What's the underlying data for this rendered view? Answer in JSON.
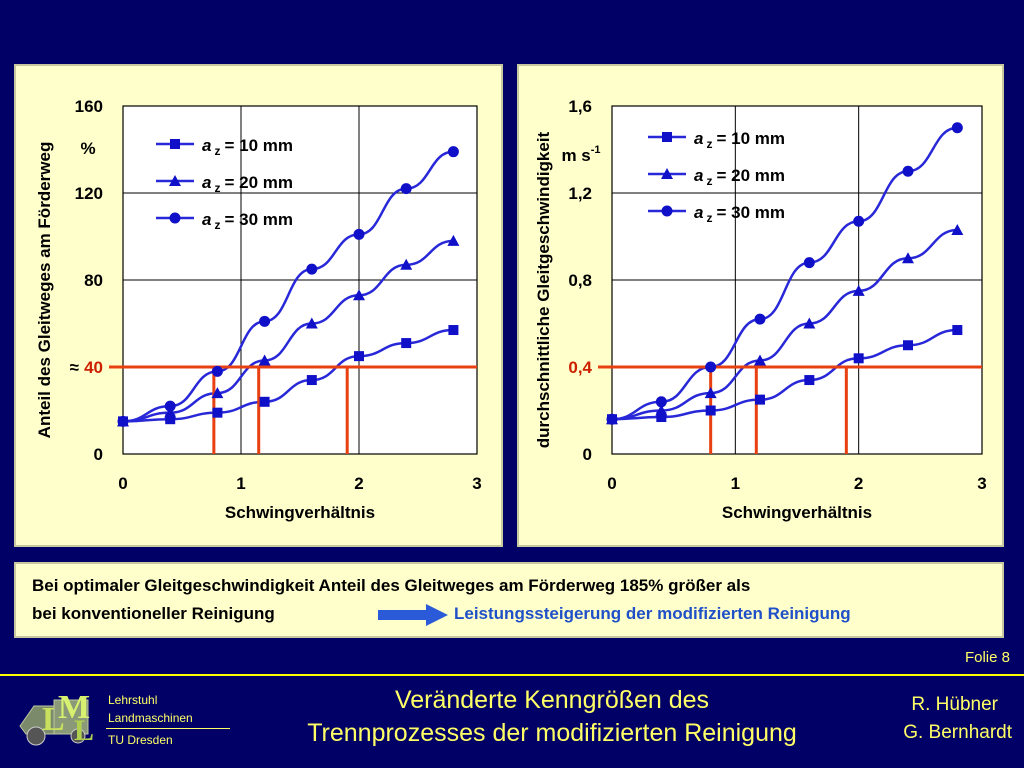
{
  "chart_data": [
    {
      "type": "line",
      "ylabel": "Anteil des Gleitweges am Förderweg",
      "xlabel": "Schwingverhältnis",
      "unit": "%",
      "xlim": [
        0,
        3
      ],
      "ylim": [
        0,
        160
      ],
      "x_ticks": [
        "0",
        "1",
        "2",
        "3"
      ],
      "y_ticks": [
        {
          "v": 0,
          "label": "0"
        },
        {
          "v": 80,
          "label": "80"
        },
        {
          "v": 120,
          "label": "120"
        },
        {
          "v": 160,
          "label": "160"
        }
      ],
      "marked_tick": {
        "v": 40,
        "label": "40",
        "prefix": "≈"
      },
      "series": [
        {
          "name": "a z = 10 mm",
          "marker": "square",
          "x": [
            0,
            0.4,
            0.8,
            1.2,
            1.6,
            2.0,
            2.4,
            2.8
          ],
          "y": [
            15,
            16,
            19,
            24,
            34,
            45,
            51,
            57
          ]
        },
        {
          "name": "a z = 20 mm",
          "marker": "triangle",
          "x": [
            0,
            0.4,
            0.8,
            1.2,
            1.6,
            2.0,
            2.4,
            2.8
          ],
          "y": [
            15,
            19,
            28,
            43,
            60,
            73,
            87,
            98
          ]
        },
        {
          "name": "a z = 30 mm",
          "marker": "circle",
          "x": [
            0,
            0.4,
            0.8,
            1.2,
            1.6,
            2.0,
            2.4,
            2.8
          ],
          "y": [
            15,
            22,
            38,
            61,
            85,
            101,
            122,
            139
          ]
        }
      ],
      "ref_y": 40,
      "ref_x": [
        0.77,
        1.15,
        1.9
      ]
    },
    {
      "type": "line",
      "ylabel": "durchschnittliche Gleitgeschwindigkeit",
      "xlabel": "Schwingverhältnis",
      "unit": "m s",
      "unit_sup": "-1",
      "xlim": [
        0,
        3
      ],
      "ylim": [
        0,
        1.6
      ],
      "x_ticks": [
        "0",
        "1",
        "2",
        "3"
      ],
      "y_ticks": [
        {
          "v": 0,
          "label": "0"
        },
        {
          "v": 0.8,
          "label": "0,8"
        },
        {
          "v": 1.2,
          "label": "1,2"
        },
        {
          "v": 1.6,
          "label": "1,6"
        }
      ],
      "marked_tick": {
        "v": 0.4,
        "label": "0,4",
        "prefix": ""
      },
      "series": [
        {
          "name": "a z = 10 mm",
          "marker": "square",
          "x": [
            0,
            0.4,
            0.8,
            1.2,
            1.6,
            2.0,
            2.4,
            2.8
          ],
          "y": [
            0.16,
            0.17,
            0.2,
            0.25,
            0.34,
            0.44,
            0.5,
            0.57
          ]
        },
        {
          "name": "a z = 20 mm",
          "marker": "triangle",
          "x": [
            0,
            0.4,
            0.8,
            1.2,
            1.6,
            2.0,
            2.4,
            2.8
          ],
          "y": [
            0.16,
            0.2,
            0.28,
            0.43,
            0.6,
            0.75,
            0.9,
            1.03
          ]
        },
        {
          "name": "a z = 30 mm",
          "marker": "circle",
          "x": [
            0,
            0.4,
            0.8,
            1.2,
            1.6,
            2.0,
            2.4,
            2.8
          ],
          "y": [
            0.16,
            0.24,
            0.4,
            0.62,
            0.88,
            1.07,
            1.3,
            1.5
          ]
        }
      ],
      "ref_y": 0.4,
      "ref_x": [
        0.8,
        1.17,
        1.9
      ]
    }
  ],
  "caption": {
    "line1": "Bei optimaler Gleitgeschwindigkeit Anteil des Gleitweges am Förderweg 185% größer als",
    "line2": "bei konventioneller Reinigung",
    "result": "Leistungssteigerung der modifizierten Reinigung"
  },
  "slide_number": "Folie 8",
  "logo": {
    "line1": "Lehrstuhl",
    "line2": "Landmaschinen",
    "line3": "TU Dresden"
  },
  "title": {
    "line1": "Veränderte Kenngrößen des",
    "line2": "Trennprozesses der modifizierten Reinigung"
  },
  "authors": [
    "R. Hübner",
    "G. Bernhardt"
  ],
  "colors": {
    "background": "#000066",
    "panel": "#ffffcc",
    "series_line": "#2828d8",
    "series_marker": "#1010c8",
    "reference": "#e84010",
    "footer_text": "#ffff66",
    "highlight_text": "#2050c8"
  }
}
